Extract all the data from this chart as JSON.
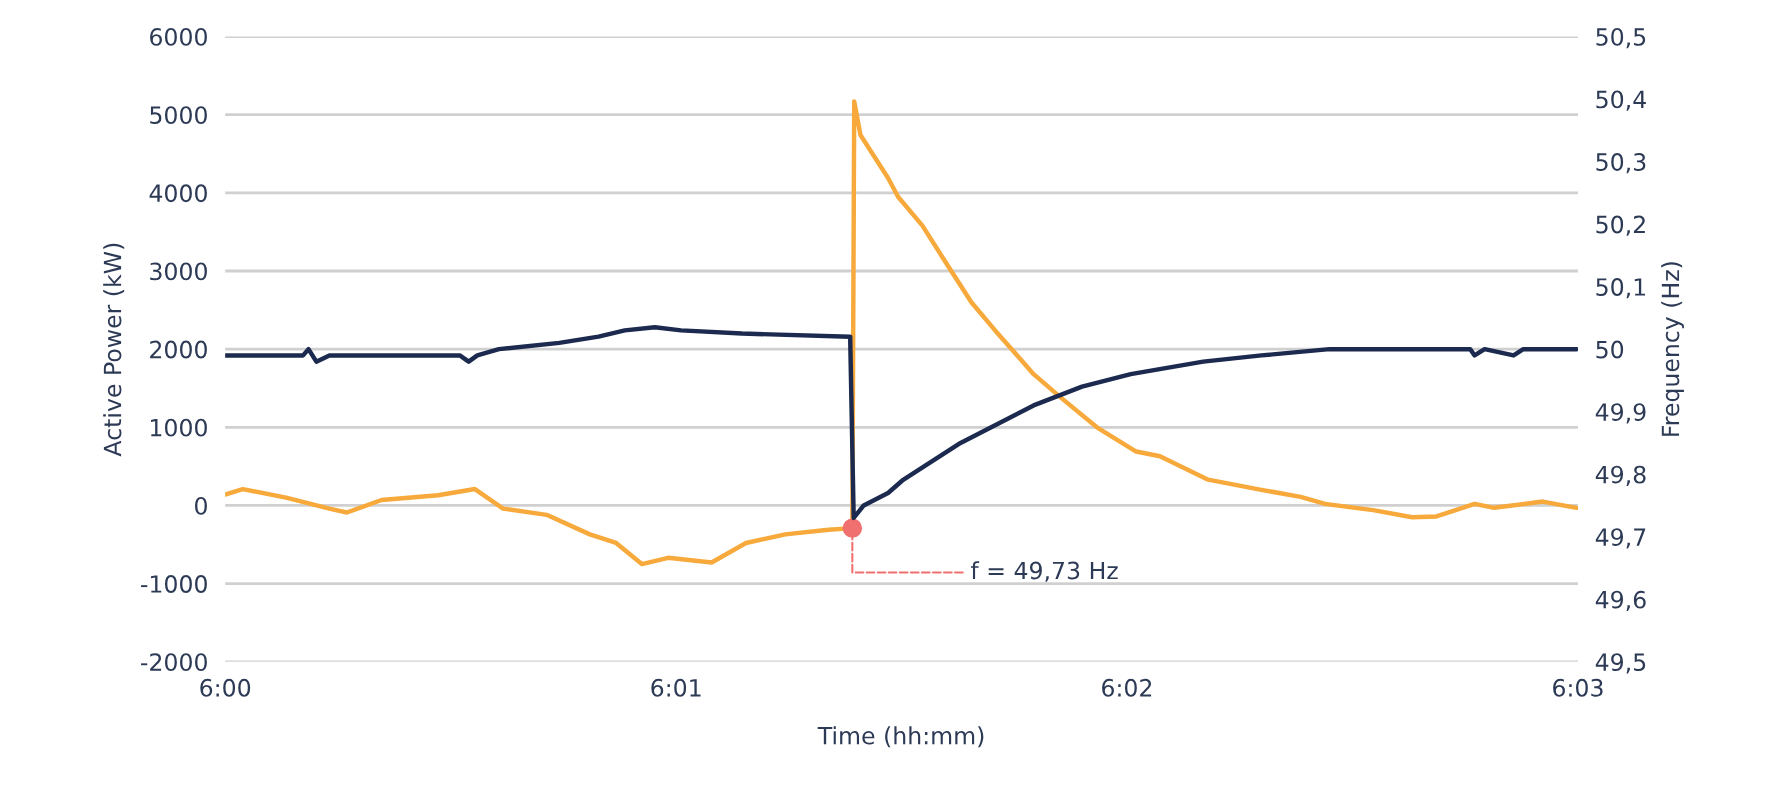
{
  "chart_data": {
    "type": "line",
    "xlabel": "Time (hh:mm)",
    "ylabel": "Active Power (kW)",
    "y2label": "Frequency (Hz)",
    "xlim": [
      6,
      6.05
    ],
    "xticks": [
      {
        "value": 6,
        "label": "6:00"
      },
      {
        "value": 6.01667,
        "label": "6:01"
      },
      {
        "value": 6.03333,
        "label": "6:02"
      },
      {
        "value": 6.05,
        "label": "6:03"
      }
    ],
    "ylim": [
      -2000,
      6000
    ],
    "yticks": [
      -2000,
      -1000,
      0,
      1000,
      2000,
      3000,
      4000,
      5000,
      6000
    ],
    "y2lim": [
      49.5,
      50.5
    ],
    "y2ticks": [
      {
        "value": 49.5,
        "label": "49,5"
      },
      {
        "value": 49.6,
        "label": "49,6"
      },
      {
        "value": 49.7,
        "label": "49,7"
      },
      {
        "value": 49.8,
        "label": "49,8"
      },
      {
        "value": 49.9,
        "label": "49,9"
      },
      {
        "value": 50,
        "label": "50"
      },
      {
        "value": 50.1,
        "label": "50,1"
      },
      {
        "value": 50.2,
        "label": "50,2"
      },
      {
        "value": 50.3,
        "label": "50,3"
      },
      {
        "value": 50.4,
        "label": "50,4"
      },
      {
        "value": 50.5,
        "label": "50,5"
      }
    ],
    "grid": "y",
    "legend": false,
    "marker": "none",
    "line_style": "solid",
    "series": [
      {
        "color": "#f7a93b",
        "x": [
          6,
          6.00065,
          6.00225,
          6.00385,
          6.0045,
          6.00578,
          6.00787,
          6.00923,
          6.01027,
          6.01188,
          6.01348,
          6.01445,
          6.0154,
          6.01637,
          6.01798,
          6.01925,
          6.0207,
          6.0223,
          6.02318,
          6.02325,
          6.02348,
          6.0245,
          6.02487,
          6.02577,
          6.02667,
          6.02758,
          6.02848,
          6.02988,
          6.03092,
          6.03222,
          6.03367,
          6.03455,
          6.03633,
          6.0383,
          6.03975,
          6.04065,
          6.04243,
          6.04387,
          6.04477,
          6.04618,
          6.0469,
          6.0487,
          6.04995
        ],
        "values": [
          140,
          210,
          100,
          -40,
          -90,
          70,
          130,
          210,
          -40,
          -120,
          -370,
          -480,
          -750,
          -670,
          -730,
          -480,
          -370,
          -310,
          -290,
          5170,
          4740,
          4190,
          3950,
          3580,
          3090,
          2600,
          2230,
          1680,
          1370,
          1000,
          690,
          630,
          330,
          200,
          110,
          20,
          -60,
          -150,
          -140,
          20,
          -30,
          50,
          -30
        ]
      },
      {
        "color": "#1b2a4e",
        "axis": "y2",
        "x": [
          6,
          6.00288,
          6.00308,
          6.00337,
          6.00385,
          6.00513,
          6.00867,
          6.009,
          6.00932,
          6.01012,
          6.01235,
          6.0138,
          6.01477,
          6.01588,
          6.01685,
          6.0191,
          6.0231,
          6.02323,
          6.0236,
          6.0245,
          6.02503,
          6.02718,
          6.02988,
          6.03167,
          6.03347,
          6.03615,
          6.0383,
          6.04082,
          6.04602,
          6.04618,
          6.04655,
          6.04762,
          6.04798,
          6.0487,
          6.04995
        ],
        "values": [
          49.99,
          49.99,
          50.0,
          49.98,
          49.99,
          49.99,
          49.99,
          49.98,
          49.99,
          50.0,
          50.01,
          50.02,
          50.03,
          50.035,
          50.03,
          50.025,
          50.02,
          49.73,
          49.75,
          49.77,
          49.79,
          49.85,
          49.91,
          49.94,
          49.96,
          49.98,
          49.99,
          50.0,
          50.0,
          49.99,
          50.0,
          49.99,
          50.0,
          50.0,
          50.0
        ]
      }
    ],
    "annotations": [
      {
        "text": "f = 49,73 Hz",
        "x": 6.02318,
        "y": -290
      }
    ]
  }
}
